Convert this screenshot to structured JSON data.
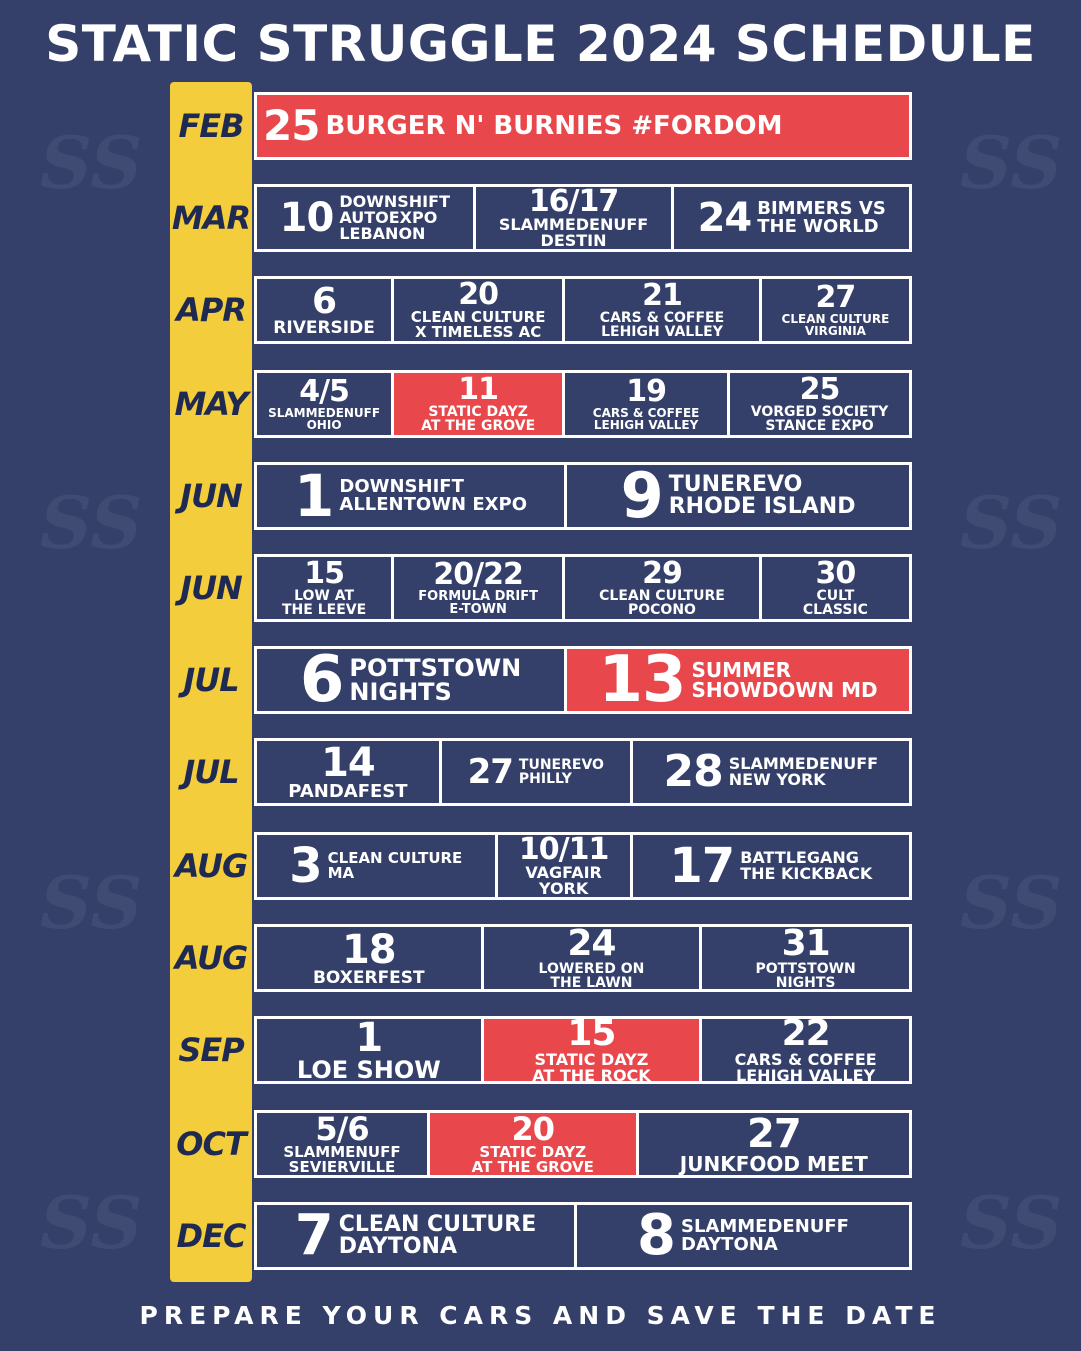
{
  "title": "STATIC STRUGGLE 2024 SCHEDULE",
  "footer": "PREPARE YOUR CARS AND SAVE THE DATE",
  "colors": {
    "background": "#34406a",
    "accent_yellow": "#f3cd3b",
    "highlight_red": "#e8474b",
    "text": "#ffffff"
  },
  "watermark": "SS",
  "rows": [
    {
      "month": "FEB",
      "events": [
        {
          "date": "25",
          "name": "BURGER N' BURNIES #FORDOM",
          "highlight": true
        }
      ]
    },
    {
      "month": "MAR",
      "events": [
        {
          "date": "10",
          "name": "DOWNSHIFT\nAUTOEXPO\nLEBANON"
        },
        {
          "date": "16/17",
          "name": "SLAMMEDENUFF\nDESTIN"
        },
        {
          "date": "24",
          "name": "BIMMERS VS\nTHE WORLD"
        }
      ]
    },
    {
      "month": "APR",
      "events": [
        {
          "date": "6",
          "name": "RIVERSIDE"
        },
        {
          "date": "20",
          "name": "CLEAN CULTURE\nX TIMELESS AC"
        },
        {
          "date": "21",
          "name": "CARS & COFFEE\nLEHIGH VALLEY"
        },
        {
          "date": "27",
          "name": "CLEAN CULTURE\nVIRGINIA"
        }
      ]
    },
    {
      "month": "MAY",
      "events": [
        {
          "date": "4/5",
          "name": "SLAMMEDENUFF\nOHIO"
        },
        {
          "date": "11",
          "name": "STATIC DAYZ\nAT THE GROVE",
          "highlight": true
        },
        {
          "date": "19",
          "name": "CARS & COFFEE\nLEHIGH VALLEY"
        },
        {
          "date": "25",
          "name": "VORGED SOCIETY\nSTANCE EXPO"
        }
      ]
    },
    {
      "month": "JUN",
      "events": [
        {
          "date": "1",
          "name": "DOWNSHIFT\nALLENTOWN EXPO"
        },
        {
          "date": "9",
          "name": "TUNEREVO\nRHODE ISLAND"
        }
      ]
    },
    {
      "month": "JUN",
      "events": [
        {
          "date": "15",
          "name": "LOW AT\nTHE LEEVE"
        },
        {
          "date": "20/22",
          "name": "FORMULA DRIFT\nE-TOWN"
        },
        {
          "date": "29",
          "name": "CLEAN CULTURE\nPOCONO"
        },
        {
          "date": "30",
          "name": "CULT\nCLASSIC"
        }
      ]
    },
    {
      "month": "JUL",
      "events": [
        {
          "date": "6",
          "name": "POTTSTOWN\nNIGHTS"
        },
        {
          "date": "13",
          "name": "SUMMER\nSHOWDOWN MD",
          "highlight": true
        }
      ]
    },
    {
      "month": "JUL",
      "events": [
        {
          "date": "14",
          "name": "PANDAFEST"
        },
        {
          "date": "27",
          "name": "TUNEREVO\nPHILLY"
        },
        {
          "date": "28",
          "name": "SLAMMEDENUFF\nNEW YORK"
        }
      ]
    },
    {
      "month": "AUG",
      "events": [
        {
          "date": "3",
          "name": "CLEAN CULTURE\nMA"
        },
        {
          "date": "10/11",
          "name": "VAGFAIR\nYORK"
        },
        {
          "date": "17",
          "name": "BATTLEGANG\nTHE KICKBACK"
        }
      ]
    },
    {
      "month": "AUG",
      "events": [
        {
          "date": "18",
          "name": "BOXERFEST"
        },
        {
          "date": "24",
          "name": "LOWERED ON\nTHE LAWN"
        },
        {
          "date": "31",
          "name": "POTTSTOWN\nNIGHTS"
        }
      ]
    },
    {
      "month": "SEP",
      "events": [
        {
          "date": "1",
          "name": "LOE SHOW"
        },
        {
          "date": "15",
          "name": "STATIC DAYZ\nAT THE ROCK",
          "highlight": true
        },
        {
          "date": "22",
          "name": "CARS & COFFEE\nLEHIGH VALLEY"
        }
      ]
    },
    {
      "month": "OCT",
      "events": [
        {
          "date": "5/6",
          "name": "SLAMMENUFF\nSEVIERVILLE"
        },
        {
          "date": "20",
          "name": "STATIC DAYZ\nAT THE GROVE",
          "highlight": true
        },
        {
          "date": "27",
          "name": "JUNKFOOD MEET"
        }
      ]
    },
    {
      "month": "DEC",
      "events": [
        {
          "date": "7",
          "name": "CLEAN CULTURE\nDAYTONA"
        },
        {
          "date": "8",
          "name": "SLAMMEDENUFF\nDAYTONA"
        }
      ]
    }
  ]
}
